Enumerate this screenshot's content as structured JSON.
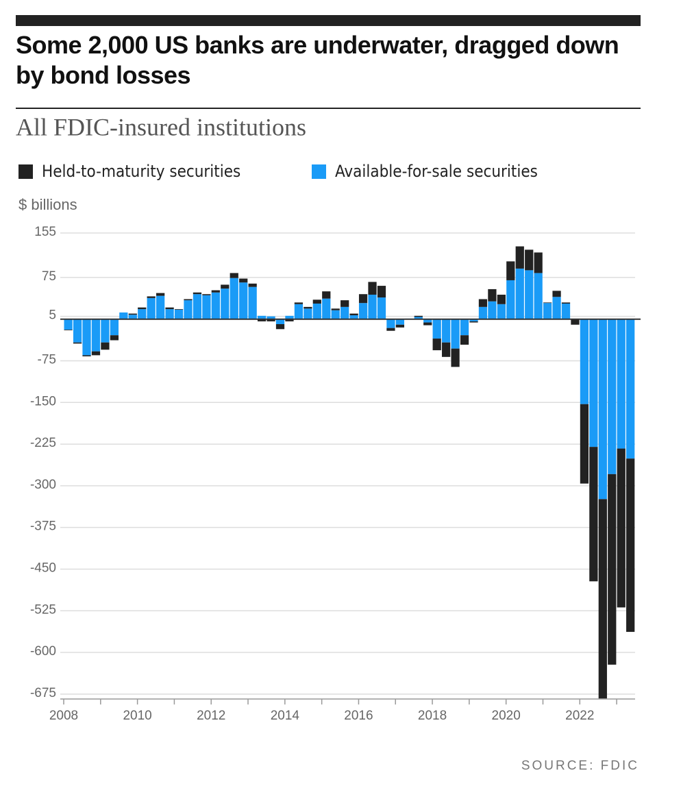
{
  "chart_data": {
    "type": "stacked_bar",
    "title": "Some 2,000 US banks are underwater, dragged down by bond losses",
    "subtitle": "All FDIC-insured institutions",
    "y_label": "$ billions",
    "source": "SOURCE: FDIC",
    "categories": [
      "2008",
      null,
      null,
      null,
      null,
      null,
      null,
      null,
      "2010",
      null,
      null,
      null,
      null,
      null,
      null,
      null,
      "2012",
      null,
      null,
      null,
      null,
      null,
      null,
      null,
      "2014",
      null,
      null,
      null,
      null,
      null,
      null,
      null,
      "2016",
      null,
      null,
      null,
      null,
      null,
      null,
      null,
      "2018",
      null,
      null,
      null,
      null,
      null,
      null,
      null,
      "2020",
      null,
      null,
      null,
      null,
      null,
      null,
      null,
      "2022",
      null,
      null,
      null,
      null,
      null
    ],
    "series": [
      {
        "name": "Held-to-maturity securities",
        "color": "#222222",
        "values": [
          -1,
          -2,
          -2,
          -7,
          -13,
          -9,
          0,
          2,
          3,
          3,
          5,
          3,
          1,
          2,
          3,
          2,
          4,
          7,
          9,
          7,
          6,
          -4,
          -4,
          -9,
          -4,
          3,
          3,
          7,
          13,
          3,
          12,
          3,
          16,
          23,
          21,
          -5,
          -5,
          0,
          2,
          -5,
          -21,
          -26,
          -33,
          -17,
          -2,
          14,
          22,
          17,
          34,
          40,
          37,
          37,
          1,
          11,
          2,
          -9,
          -143,
          -242,
          -359,
          -343,
          -286,
          -312
        ]
      },
      {
        "name": "Available-for-sale securities",
        "color": "#1a9bf7",
        "values": [
          -19,
          -42,
          -65,
          -58,
          -42,
          -29,
          12,
          8,
          18,
          38,
          42,
          18,
          17,
          34,
          45,
          43,
          48,
          55,
          74,
          66,
          58,
          6,
          5,
          -9,
          6,
          27,
          19,
          28,
          37,
          16,
          22,
          7,
          29,
          44,
          39,
          -16,
          -10,
          1,
          4,
          -6,
          -35,
          -42,
          -53,
          -29,
          -4,
          22,
          32,
          27,
          70,
          91,
          88,
          83,
          29,
          40,
          28,
          -1,
          -153,
          -230,
          -324,
          -279,
          -233,
          -251
        ]
      }
    ],
    "ylim": [
      -690,
      160
    ],
    "yticks": [
      155,
      75,
      5,
      -75,
      -150,
      -225,
      -300,
      -375,
      -450,
      -525,
      -600,
      -675
    ],
    "grid": true
  }
}
